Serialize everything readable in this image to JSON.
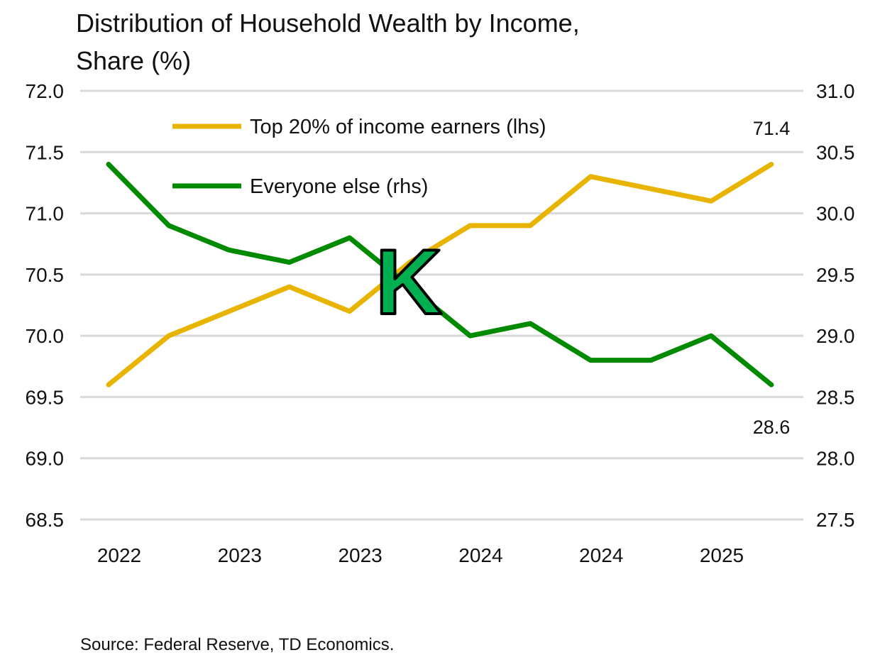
{
  "chart_data": {
    "type": "line",
    "title_line1": "Distribution of Household Wealth by Income,",
    "title_line2": "Share (%)",
    "x_tick_labels": [
      "2022",
      "2023",
      "2023",
      "2024",
      "2024",
      "2025"
    ],
    "left_axis": {
      "range": [
        68.5,
        72.0
      ],
      "ticks": [
        "72.0",
        "71.5",
        "71.0",
        "70.5",
        "70.0",
        "69.5",
        "69.0",
        "68.5"
      ]
    },
    "right_axis": {
      "range": [
        27.5,
        31.0
      ],
      "ticks": [
        "31.0",
        "30.5",
        "30.0",
        "29.5",
        "29.0",
        "28.5",
        "28.0",
        "27.5"
      ]
    },
    "grid": true,
    "legend_position": "top-center",
    "series": [
      {
        "name": "Top 20% of income earners (lhs)",
        "axis": "left",
        "color": "#E8B400",
        "values": [
          69.6,
          70.0,
          70.2,
          70.4,
          70.2,
          70.6,
          70.9,
          70.9,
          71.3,
          71.2,
          71.1,
          71.4
        ],
        "end_label": "71.4"
      },
      {
        "name": "Everyone else (rhs)",
        "axis": "right",
        "color": "#008A00",
        "values": [
          30.4,
          29.9,
          29.7,
          29.6,
          29.8,
          29.4,
          29.0,
          29.1,
          28.8,
          28.8,
          29.0,
          28.6
        ],
        "end_label": "28.6"
      }
    ],
    "annotation": "K",
    "annotation_color": "#00B050",
    "source": "Source: Federal Reserve, TD Economics."
  }
}
